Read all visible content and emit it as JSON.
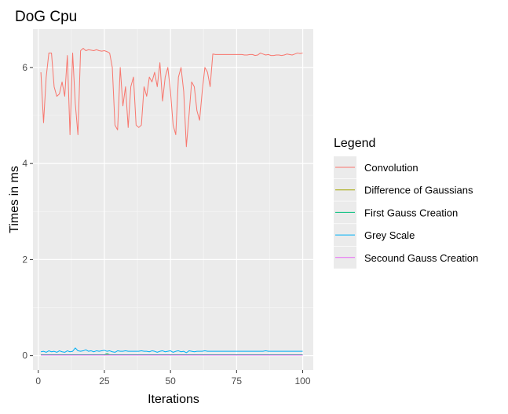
{
  "chart_data": {
    "type": "line",
    "title": "DoG Cpu",
    "xlabel": "Iterations",
    "ylabel": "Times in ms",
    "xlim": [
      -2,
      104
    ],
    "ylim": [
      -0.3,
      6.8
    ],
    "xticks": [
      0,
      25,
      50,
      75,
      100
    ],
    "yticks": [
      0,
      2,
      4,
      6
    ],
    "grid": true,
    "legend": {
      "title": "Legend",
      "placement": "right"
    },
    "series": [
      {
        "name": "Convolution",
        "color": "#F8766D",
        "x": [
          1,
          2,
          3,
          4,
          5,
          6,
          7,
          8,
          9,
          10,
          11,
          12,
          13,
          14,
          15,
          16,
          17,
          18,
          19,
          20,
          21,
          22,
          23,
          24,
          25,
          26,
          27,
          28,
          29,
          30,
          31,
          32,
          33,
          34,
          35,
          36,
          37,
          38,
          39,
          40,
          41,
          42,
          43,
          44,
          45,
          46,
          47,
          48,
          49,
          50,
          51,
          52,
          53,
          54,
          55,
          56,
          57,
          58,
          59,
          60,
          61,
          62,
          63,
          64,
          65,
          66,
          67,
          68,
          69,
          70,
          71,
          72,
          73,
          74,
          75,
          76,
          77,
          78,
          79,
          80,
          81,
          82,
          83,
          84,
          85,
          86,
          87,
          88,
          89,
          90,
          91,
          92,
          93,
          94,
          95,
          96,
          97,
          98,
          99,
          100
        ],
        "y": [
          5.9,
          4.85,
          5.8,
          6.3,
          6.3,
          5.6,
          5.4,
          5.45,
          5.7,
          5.4,
          6.25,
          4.6,
          6.3,
          5.25,
          4.6,
          6.35,
          6.4,
          6.35,
          6.37,
          6.36,
          6.35,
          6.37,
          6.35,
          6.34,
          6.35,
          6.33,
          6.3,
          6.0,
          4.8,
          4.7,
          6.0,
          5.2,
          5.6,
          4.75,
          5.6,
          5.8,
          4.8,
          4.75,
          4.8,
          5.6,
          5.4,
          5.8,
          5.7,
          5.9,
          5.6,
          6.1,
          5.3,
          5.8,
          6.0,
          5.5,
          4.8,
          4.6,
          5.8,
          6.0,
          5.5,
          4.35,
          5.0,
          5.7,
          5.6,
          5.1,
          4.9,
          5.5,
          6.0,
          5.9,
          5.6,
          6.28,
          6.27,
          6.27,
          6.27,
          6.27,
          6.27,
          6.27,
          6.27,
          6.27,
          6.27,
          6.27,
          6.27,
          6.26,
          6.26,
          6.27,
          6.27,
          6.25,
          6.26,
          6.3,
          6.28,
          6.26,
          6.27,
          6.25,
          6.25,
          6.26,
          6.26,
          6.25,
          6.26,
          6.28,
          6.27,
          6.26,
          6.28,
          6.3,
          6.29,
          6.3
        ]
      },
      {
        "name": "Difference of Gaussians",
        "color": "#A3A500",
        "x": [
          1,
          10,
          20,
          25,
          26,
          27,
          30,
          40,
          50,
          60,
          70,
          80,
          90,
          100
        ],
        "y": [
          0.01,
          0.01,
          0.01,
          0.01,
          0.02,
          0.01,
          0.01,
          0.01,
          0.01,
          0.01,
          0.01,
          0.01,
          0.01,
          0.01
        ]
      },
      {
        "name": "First Gauss Creation",
        "color": "#00BF7D",
        "x": [
          1,
          10,
          20,
          25,
          26,
          27,
          30,
          40,
          50,
          60,
          70,
          80,
          90,
          100
        ],
        "y": [
          0.02,
          0.02,
          0.02,
          0.02,
          0.04,
          0.02,
          0.02,
          0.02,
          0.02,
          0.02,
          0.02,
          0.02,
          0.02,
          0.02
        ]
      },
      {
        "name": "Grey Scale",
        "color": "#00B0F6",
        "x": [
          1,
          2,
          3,
          4,
          5,
          6,
          7,
          8,
          9,
          10,
          11,
          12,
          13,
          14,
          15,
          16,
          17,
          18,
          19,
          20,
          21,
          22,
          23,
          24,
          25,
          26,
          27,
          28,
          29,
          30,
          31,
          32,
          33,
          34,
          35,
          36,
          37,
          38,
          39,
          40,
          41,
          42,
          43,
          44,
          45,
          46,
          47,
          48,
          49,
          50,
          51,
          52,
          53,
          54,
          55,
          56,
          57,
          58,
          59,
          60,
          61,
          62,
          63,
          64,
          65,
          66,
          67,
          68,
          69,
          70,
          71,
          72,
          73,
          74,
          75,
          76,
          77,
          78,
          79,
          80,
          81,
          82,
          83,
          84,
          85,
          86,
          87,
          88,
          89,
          90,
          91,
          92,
          93,
          94,
          95,
          96,
          97,
          98,
          99,
          100
        ],
        "y": [
          0.08,
          0.09,
          0.07,
          0.1,
          0.08,
          0.09,
          0.07,
          0.1,
          0.08,
          0.07,
          0.1,
          0.08,
          0.09,
          0.16,
          0.1,
          0.09,
          0.1,
          0.12,
          0.09,
          0.1,
          0.08,
          0.1,
          0.09,
          0.1,
          0.11,
          0.09,
          0.1,
          0.08,
          0.07,
          0.1,
          0.09,
          0.09,
          0.1,
          0.09,
          0.09,
          0.09,
          0.09,
          0.09,
          0.1,
          0.09,
          0.09,
          0.08,
          0.1,
          0.09,
          0.07,
          0.09,
          0.1,
          0.08,
          0.09,
          0.1,
          0.07,
          0.09,
          0.1,
          0.08,
          0.09,
          0.06,
          0.1,
          0.09,
          0.08,
          0.09,
          0.09,
          0.09,
          0.1,
          0.09,
          0.09,
          0.09,
          0.09,
          0.09,
          0.09,
          0.09,
          0.09,
          0.09,
          0.09,
          0.09,
          0.09,
          0.09,
          0.09,
          0.09,
          0.09,
          0.09,
          0.09,
          0.09,
          0.09,
          0.09,
          0.09,
          0.1,
          0.09,
          0.09,
          0.09,
          0.09,
          0.09,
          0.09,
          0.09,
          0.09,
          0.09,
          0.09,
          0.09,
          0.09,
          0.09,
          0.09
        ]
      },
      {
        "name": "Secound Gauss Creation",
        "color": "#E76BF3",
        "x": [
          1,
          10,
          20,
          30,
          40,
          50,
          60,
          70,
          80,
          90,
          100
        ],
        "y": [
          0.01,
          0.01,
          0.01,
          0.01,
          0.01,
          0.01,
          0.01,
          0.01,
          0.01,
          0.01,
          0.01
        ]
      }
    ]
  }
}
